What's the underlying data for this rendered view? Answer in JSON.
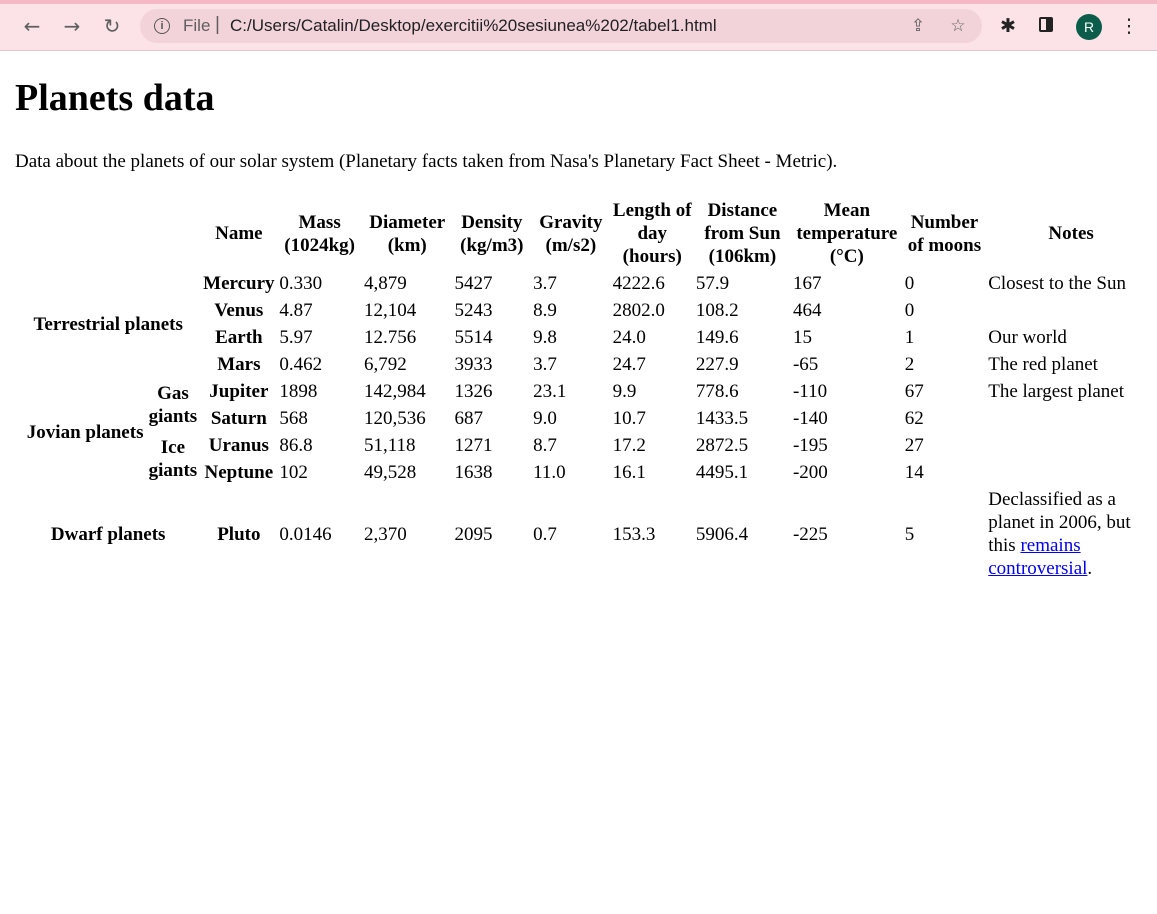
{
  "browser": {
    "back_icon": "←",
    "forward_icon": "→",
    "reload_icon": "↻",
    "info_icon": "i",
    "scheme": "File",
    "separator": "|",
    "url": "C:/Users/Catalin/Desktop/exercitii%20sesiunea%202/tabel1.html",
    "share_icon": "⇪",
    "star_icon": "☆",
    "extensions_icon": "✱",
    "avatar_letter": "R",
    "menu_icon": "⋮",
    "accent_color": "#0b5c4a"
  },
  "page": {
    "title": "Planets data",
    "intro": "Data about the planets of our solar system (Planetary facts taken from Nasa's Planetary Fact Sheet - Metric).",
    "headers": {
      "name": "Name",
      "mass": "Mass (1024kg)",
      "diameter": "Diameter (km)",
      "density": "Density (kg/m3)",
      "gravity": "Gravity (m/s2)",
      "day": "Length of day (hours)",
      "distance": "Distance from Sun (106km)",
      "temp": "Mean temperature (°C)",
      "moons": "Number of moons",
      "notes": "Notes"
    },
    "groups": {
      "terrestrial": "Terrestrial planets",
      "jovian": "Jovian planets",
      "gas": "Gas giants",
      "ice": "Ice giants",
      "dwarf": "Dwarf planets"
    },
    "rows": [
      {
        "name": "Mercury",
        "mass": "0.330",
        "diameter": "4,879",
        "density": "5427",
        "gravity": "3.7",
        "day": "4222.6",
        "distance": "57.9",
        "temp": "167",
        "moons": "0",
        "note": "Closest to the Sun"
      },
      {
        "name": "Venus",
        "mass": "4.87",
        "diameter": "12,104",
        "density": "5243",
        "gravity": "8.9",
        "day": "2802.0",
        "distance": "108.2",
        "temp": "464",
        "moons": "0",
        "note": ""
      },
      {
        "name": "Earth",
        "mass": "5.97",
        "diameter": "12.756",
        "density": "5514",
        "gravity": "9.8",
        "day": "24.0",
        "distance": "149.6",
        "temp": "15",
        "moons": "1",
        "note": "Our world"
      },
      {
        "name": "Mars",
        "mass": "0.462",
        "diameter": "6,792",
        "density": "3933",
        "gravity": "3.7",
        "day": "24.7",
        "distance": "227.9",
        "temp": "-65",
        "moons": "2",
        "note": "The red planet"
      },
      {
        "name": "Jupiter",
        "mass": "1898",
        "diameter": "142,984",
        "density": "1326",
        "gravity": "23.1",
        "day": "9.9",
        "distance": "778.6",
        "temp": "-110",
        "moons": "67",
        "note": "The largest planet"
      },
      {
        "name": "Saturn",
        "mass": "568",
        "diameter": "120,536",
        "density": "687",
        "gravity": "9.0",
        "day": "10.7",
        "distance": "1433.5",
        "temp": "-140",
        "moons": "62",
        "note": ""
      },
      {
        "name": "Uranus",
        "mass": "86.8",
        "diameter": "51,118",
        "density": "1271",
        "gravity": "8.7",
        "day": "17.2",
        "distance": "2872.5",
        "temp": "-195",
        "moons": "27",
        "note": ""
      },
      {
        "name": "Neptune",
        "mass": "102",
        "diameter": "49,528",
        "density": "1638",
        "gravity": "11.0",
        "day": "16.1",
        "distance": "4495.1",
        "temp": "-200",
        "moons": "14",
        "note": ""
      },
      {
        "name": "Pluto",
        "mass": "0.0146",
        "diameter": "2,370",
        "density": "2095",
        "gravity": "0.7",
        "day": "153.3",
        "distance": "5906.4",
        "temp": "-225",
        "moons": "5",
        "note": ""
      }
    ],
    "pluto_note": {
      "before": "Declassified as a planet in 2006, but this ",
      "link": "remains controversial",
      "after": "."
    }
  }
}
